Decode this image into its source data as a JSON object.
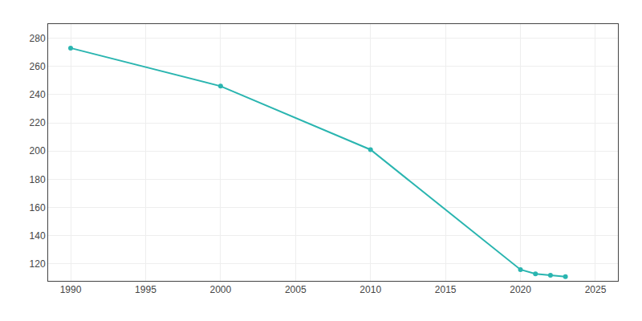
{
  "chart_data": {
    "type": "line",
    "x": [
      1990,
      2000,
      2010,
      2020,
      2021,
      2022,
      2023
    ],
    "values": [
      273,
      246,
      201,
      116,
      113,
      112,
      111
    ],
    "color": "#2ab5b0",
    "marker": "circle",
    "xlim": [
      1988.5,
      2026.5
    ],
    "ylim": [
      108,
      290
    ],
    "xticks": [
      1990,
      1995,
      2000,
      2005,
      2010,
      2015,
      2020,
      2025
    ],
    "yticks": [
      120,
      140,
      160,
      180,
      200,
      220,
      240,
      260,
      280
    ],
    "grid": true
  }
}
